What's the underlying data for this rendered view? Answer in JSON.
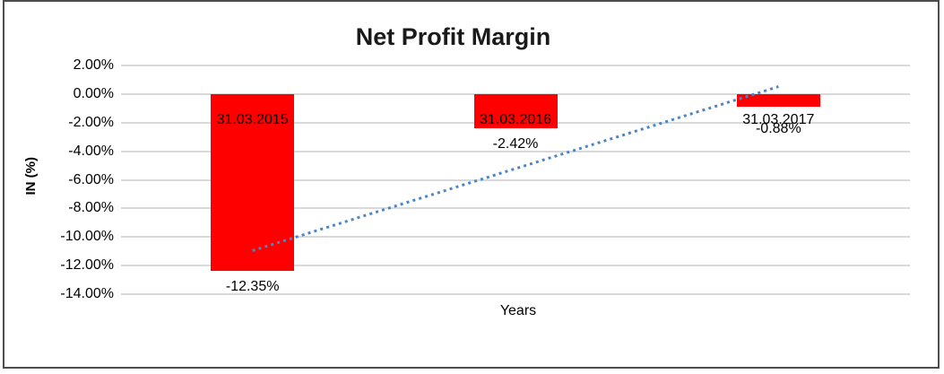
{
  "chart_data": {
    "type": "bar",
    "title": "Net Profit Margin",
    "xlabel": "Years",
    "ylabel": "IN (%)",
    "categories": [
      "31.03.2015",
      "31.03.2016",
      "31.03.2017"
    ],
    "values": [
      -12.35,
      -2.42,
      -0.88
    ],
    "data_labels": [
      "-12.35%",
      "-2.42%",
      "-0.88%"
    ],
    "ylim": [
      2,
      -14
    ],
    "yticks": [
      2,
      0,
      -2,
      -4,
      -6,
      -8,
      -10,
      -12,
      -14
    ],
    "ytick_labels": [
      "2.00%",
      "0.00%",
      "-2.00%",
      "-4.00%",
      "-6.00%",
      "-8.00%",
      "-10.00%",
      "-12.00%",
      "-14.00%"
    ],
    "grid": true,
    "legend": "none",
    "bar_color": "#ff0000",
    "gridline_color": "#d9d9d9",
    "trendline": {
      "type": "linear",
      "style": "dotted",
      "color": "#4a86c4"
    }
  }
}
